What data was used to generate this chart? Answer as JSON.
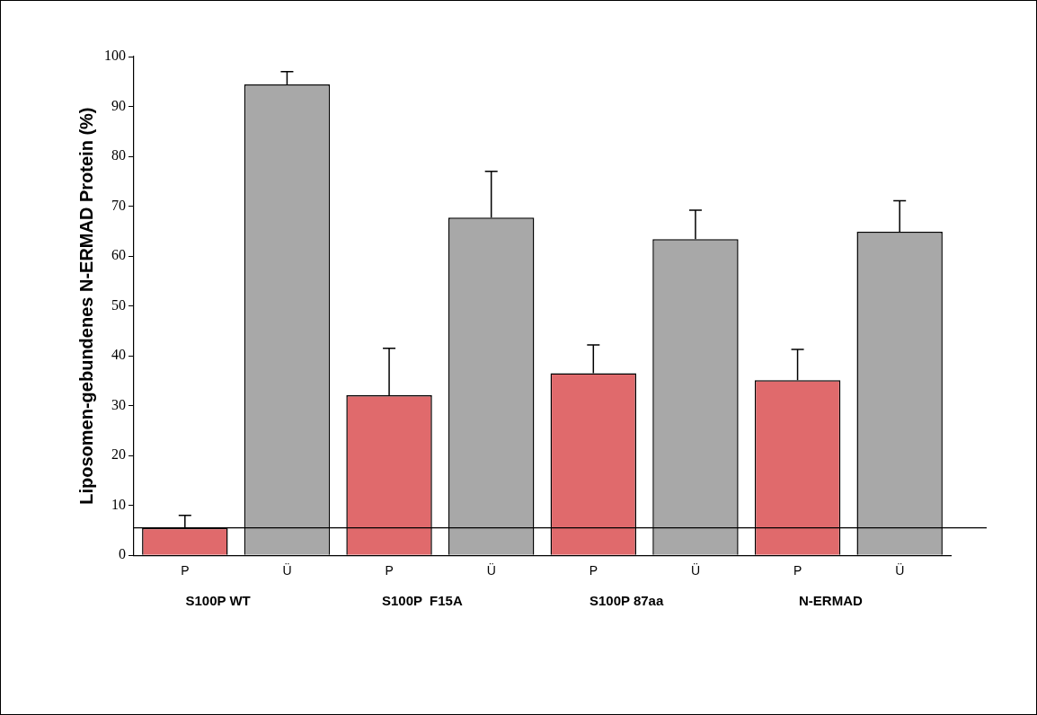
{
  "chart_data": {
    "type": "bar",
    "ylabel": "Liposomen-gebundenes N-ERMAD Protein (%)",
    "categories": [
      "P",
      "Ü",
      "P",
      "Ü",
      "P",
      "Ü",
      "P",
      "Ü"
    ],
    "values": [
      5.5,
      94.4,
      32.1,
      67.7,
      36.5,
      63.4,
      35.1,
      64.9
    ],
    "colors": [
      "#e06a6c",
      "#a8a8a8",
      "#e06a6c",
      "#a8a8a8",
      "#e06a6c",
      "#a8a8a8",
      "#e06a6c",
      "#a8a8a8"
    ],
    "errors": [
      [
        5.5,
        8.0
      ],
      [
        94.4,
        97.0
      ],
      [
        32.1,
        41.5
      ],
      [
        67.7,
        77.0
      ],
      [
        36.5,
        42.2
      ],
      [
        63.4,
        69.2
      ],
      [
        35.1,
        41.3
      ],
      [
        64.9,
        71.1
      ]
    ],
    "ylim": [
      0,
      100
    ],
    "yticks": [
      0,
      10,
      20,
      30,
      40,
      50,
      60,
      70,
      80,
      90,
      100
    ],
    "grid": false,
    "legend": false,
    "ref_lines": [
      {
        "axis": "y",
        "value": 5.5,
        "color": "#000000"
      }
    ],
    "annotations": [
      "S100P WT",
      "S100P  F15A",
      "S100P 87aa",
      "N-ERMAD"
    ]
  }
}
